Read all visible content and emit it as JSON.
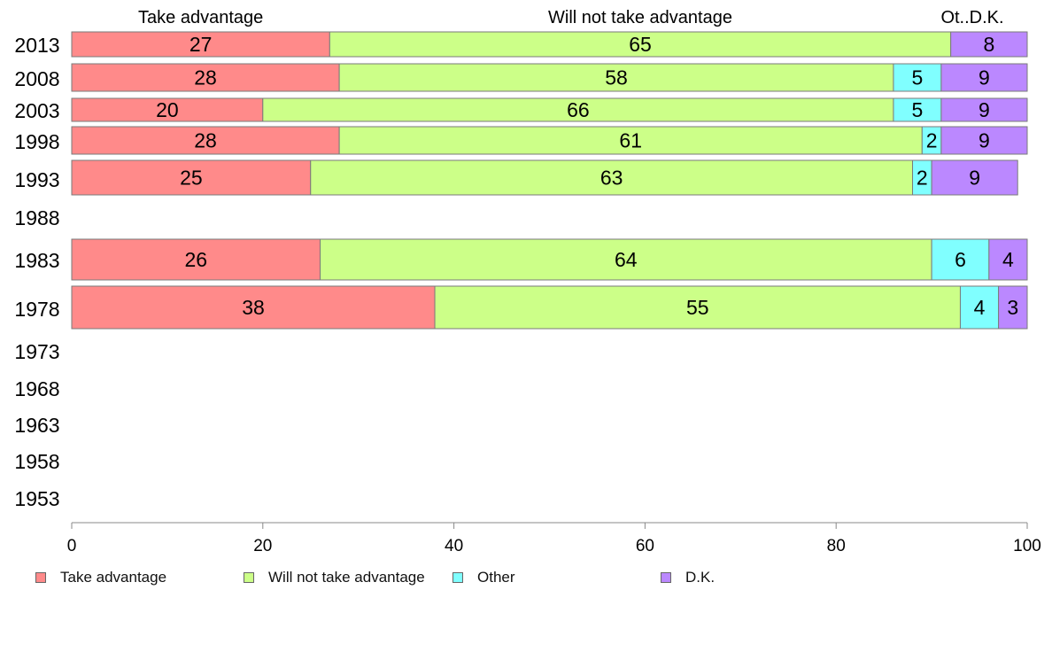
{
  "chart_data": {
    "type": "bar",
    "orientation": "horizontal",
    "stacked": true,
    "categories": [
      "2013",
      "2008",
      "2003",
      "1998",
      "1993",
      "1988",
      "1983",
      "1978",
      "1973",
      "1968",
      "1963",
      "1958",
      "1953"
    ],
    "series": [
      {
        "name": "Take advantage",
        "color": "#ff8a8a",
        "values": [
          27,
          28,
          20,
          28,
          25,
          null,
          26,
          38,
          null,
          null,
          null,
          null,
          null
        ]
      },
      {
        "name": "Will not take advantage",
        "color": "#ccff88",
        "values": [
          65,
          58,
          66,
          61,
          63,
          null,
          64,
          55,
          null,
          null,
          null,
          null,
          null
        ]
      },
      {
        "name": "Other",
        "color": "#80ffff",
        "values": [
          0,
          5,
          5,
          2,
          2,
          null,
          6,
          4,
          null,
          null,
          null,
          null,
          null
        ]
      },
      {
        "name": "D.K.",
        "color": "#bb88ff",
        "values": [
          8,
          9,
          9,
          9,
          9,
          null,
          4,
          3,
          null,
          null,
          null,
          null,
          null
        ]
      }
    ],
    "top_labels": [
      "Take advantage",
      "Will not take advantage",
      "Ot..D.K."
    ],
    "xlim": [
      0,
      100
    ],
    "xticks": [
      0,
      20,
      40,
      60,
      80,
      100
    ],
    "legend_position": "bottom",
    "grid": false
  }
}
